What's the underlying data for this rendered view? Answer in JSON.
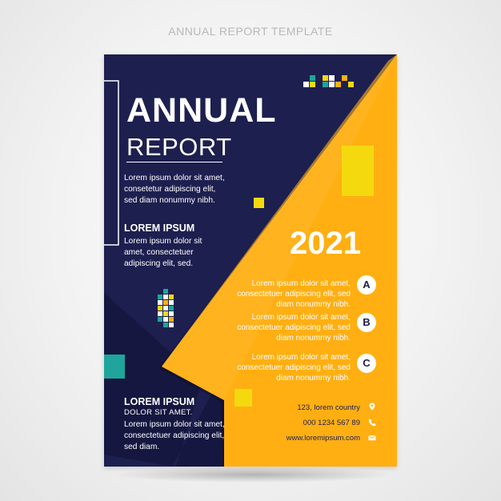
{
  "caption": "ANNUAL REPORT TEMPLATE",
  "colors": {
    "navy": "#1d1f4f",
    "navy_dark": "#151740",
    "orange": "#ffaf12",
    "yellow": "#f5d90f",
    "teal": "#1fa59b",
    "white": "#ffffff"
  },
  "report": {
    "title_line1": "ANNUAL",
    "title_line2": "REPORT",
    "intro": {
      "line1": "Lorem ipsum dolor sit amet,",
      "line2": "consetetur adipiscing elit,",
      "line3": "sed diam nonummy nibh."
    },
    "section1": {
      "heading": "LOREM IPSUM",
      "line1": "Lorem ipsum dolor sit",
      "line2": "amet, consectetuer",
      "line3": "adipiscing elit, sed."
    },
    "year": "2021",
    "items": [
      {
        "badge": "A",
        "line1": "Lorem ipsum dolor sit amet,",
        "line2": "consectetuer adipiscing elit, sed",
        "line3": "diam nonummy nibh."
      },
      {
        "badge": "B",
        "line1": "Lorem ipsum dolor sit amet,",
        "line2": "consectetuer adipiscing elit, sed",
        "line3": "diam nonummy nibh."
      },
      {
        "badge": "C",
        "line1": "Lorem ipsum dolor sit amet,",
        "line2": "consectetuer adipiscing elit, sed",
        "line3": "diam nonummy nibh."
      }
    ],
    "section2": {
      "heading": "LOREM IPSUM",
      "subheading": "DOLOR SIT AMET.",
      "line1": "Lorem ipsum dolor sit amet,",
      "line2": "consectetuer adipiscing elit,",
      "line3": "sed diam."
    },
    "contact": {
      "address": "123, lorem country",
      "phone": "000 1234 567 89",
      "website": "www.loremipsum.com",
      "address_icon": "location-pin-icon",
      "phone_icon": "phone-icon",
      "website_icon": "envelope-icon"
    }
  }
}
